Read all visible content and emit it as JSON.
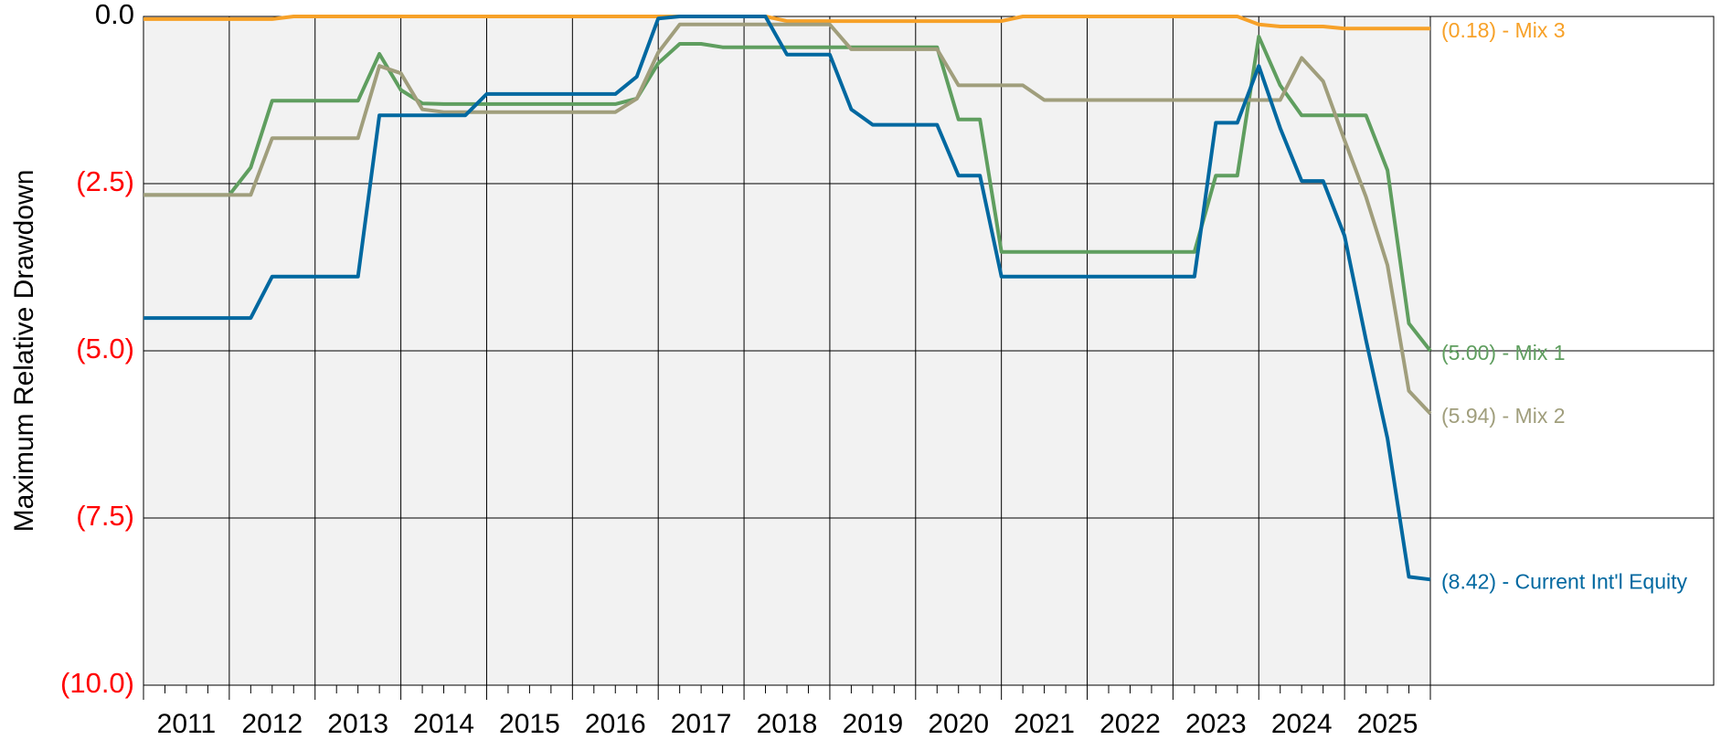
{
  "chart_data": {
    "type": "line",
    "y_axis_label": "Maximum Relative Drawdown",
    "x": [
      2011,
      2011.25,
      2011.5,
      2011.75,
      2012,
      2012.25,
      2012.5,
      2012.75,
      2013,
      2013.25,
      2013.5,
      2013.75,
      2014,
      2014.25,
      2014.5,
      2014.75,
      2015,
      2015.25,
      2015.5,
      2015.75,
      2016,
      2016.25,
      2016.5,
      2016.75,
      2017,
      2017.25,
      2017.5,
      2017.75,
      2018,
      2018.25,
      2018.5,
      2018.75,
      2019,
      2019.25,
      2019.5,
      2019.75,
      2020,
      2020.25,
      2020.5,
      2020.75,
      2021,
      2021.25,
      2021.5,
      2021.75,
      2022,
      2022.25,
      2022.5,
      2022.75,
      2023,
      2023.25,
      2023.5,
      2023.75,
      2024,
      2024.25,
      2024.5,
      2024.75,
      2025,
      2025.25,
      2025.5,
      2025.75,
      2026
    ],
    "xlim": [
      2011,
      2026
    ],
    "xgrid": [
      2011,
      2012,
      2013,
      2014,
      2015,
      2016,
      2017,
      2018,
      2019,
      2020,
      2021,
      2022,
      2023,
      2024,
      2025,
      2026
    ],
    "xticks": [
      {
        "value": 2011.5,
        "label": "2011"
      },
      {
        "value": 2012.5,
        "label": "2012"
      },
      {
        "value": 2013.5,
        "label": "2013"
      },
      {
        "value": 2014.5,
        "label": "2014"
      },
      {
        "value": 2015.5,
        "label": "2015"
      },
      {
        "value": 2016.5,
        "label": "2016"
      },
      {
        "value": 2017.5,
        "label": "2017"
      },
      {
        "value": 2018.5,
        "label": "2018"
      },
      {
        "value": 2019.5,
        "label": "2019"
      },
      {
        "value": 2020.5,
        "label": "2020"
      },
      {
        "value": 2021.5,
        "label": "2021"
      },
      {
        "value": 2022.5,
        "label": "2022"
      },
      {
        "value": 2023.5,
        "label": "2023"
      },
      {
        "value": 2024.5,
        "label": "2024"
      },
      {
        "value": 2025.5,
        "label": "2025"
      }
    ],
    "ylim": [
      -10,
      0
    ],
    "yticks": [
      {
        "value": 0,
        "label": "0.0"
      },
      {
        "value": -2.5,
        "label": "(2.5)"
      },
      {
        "value": -5,
        "label": "(5.0)"
      },
      {
        "value": -7.5,
        "label": "(7.5)"
      },
      {
        "value": -10,
        "label": "(10.0)"
      }
    ],
    "ytick_color_negative": "#ff0000",
    "grid": true,
    "label_separator": " - ",
    "series": [
      {
        "name": "Mix 3",
        "color": "#f7a128",
        "end_value_label": "(0.18)",
        "values": [
          -0.04,
          -0.04,
          -0.04,
          -0.04,
          -0.04,
          -0.04,
          -0.04,
          0,
          0,
          0,
          0,
          0,
          0,
          0,
          0,
          0,
          0,
          0,
          0,
          0,
          0,
          0,
          0,
          0,
          0,
          0,
          0,
          0,
          0,
          0,
          -0.07,
          -0.07,
          -0.07,
          -0.07,
          -0.07,
          -0.07,
          -0.07,
          -0.07,
          -0.07,
          -0.07,
          -0.07,
          0,
          0,
          0,
          0,
          0,
          0,
          0,
          0,
          0,
          0,
          0,
          -0.12,
          -0.15,
          -0.15,
          -0.15,
          -0.18,
          -0.18,
          -0.18,
          -0.18,
          -0.18
        ]
      },
      {
        "name": "Mix 1",
        "color": "#5f9e5f",
        "end_value_label": "(5.00)",
        "values": [
          -2.67,
          -2.67,
          -2.67,
          -2.67,
          -2.67,
          -2.26,
          -1.26,
          -1.26,
          -1.26,
          -1.26,
          -1.26,
          -0.56,
          -1.1,
          -1.3,
          -1.31,
          -1.31,
          -1.31,
          -1.31,
          -1.31,
          -1.31,
          -1.31,
          -1.31,
          -1.31,
          -1.23,
          -0.7,
          -0.41,
          -0.41,
          -0.46,
          -0.46,
          -0.46,
          -0.46,
          -0.46,
          -0.46,
          -0.46,
          -0.46,
          -0.46,
          -0.46,
          -0.46,
          -1.54,
          -1.54,
          -3.52,
          -3.52,
          -3.52,
          -3.52,
          -3.52,
          -3.52,
          -3.52,
          -3.52,
          -3.52,
          -3.52,
          -2.38,
          -2.38,
          -0.3,
          -1.03,
          -1.48,
          -1.48,
          -1.48,
          -1.48,
          -2.3,
          -4.59,
          -5.0
        ]
      },
      {
        "name": "Mix 2",
        "color": "#a09e7c",
        "end_value_label": "(5.94)",
        "values": [
          -2.67,
          -2.67,
          -2.67,
          -2.67,
          -2.67,
          -2.67,
          -1.82,
          -1.82,
          -1.82,
          -1.82,
          -1.82,
          -0.74,
          -0.85,
          -1.39,
          -1.43,
          -1.43,
          -1.43,
          -1.43,
          -1.43,
          -1.43,
          -1.43,
          -1.43,
          -1.43,
          -1.23,
          -0.54,
          -0.12,
          -0.12,
          -0.12,
          -0.12,
          -0.12,
          -0.12,
          -0.12,
          -0.12,
          -0.49,
          -0.49,
          -0.49,
          -0.49,
          -0.49,
          -1.03,
          -1.03,
          -1.03,
          -1.03,
          -1.25,
          -1.25,
          -1.25,
          -1.25,
          -1.25,
          -1.25,
          -1.25,
          -1.25,
          -1.25,
          -1.25,
          -1.25,
          -1.25,
          -0.62,
          -0.97,
          -1.85,
          -2.7,
          -3.72,
          -5.6,
          -5.94
        ]
      },
      {
        "name": "Current Int'l Equity",
        "color": "#0068a0",
        "end_value_label": "(8.42)",
        "values": [
          -4.51,
          -4.51,
          -4.51,
          -4.51,
          -4.51,
          -4.51,
          -3.89,
          -3.89,
          -3.89,
          -3.89,
          -3.89,
          -1.48,
          -1.48,
          -1.48,
          -1.48,
          -1.48,
          -1.16,
          -1.16,
          -1.16,
          -1.16,
          -1.16,
          -1.16,
          -1.16,
          -0.9,
          -0.03,
          0,
          0,
          0,
          0,
          0,
          -0.57,
          -0.57,
          -0.57,
          -1.39,
          -1.62,
          -1.62,
          -1.62,
          -1.62,
          -2.38,
          -2.38,
          -3.89,
          -3.89,
          -3.89,
          -3.89,
          -3.89,
          -3.89,
          -3.89,
          -3.89,
          -3.89,
          -3.89,
          -1.59,
          -1.59,
          -0.74,
          -1.67,
          -2.46,
          -2.46,
          -3.28,
          -4.84,
          -6.31,
          -8.38,
          -8.42
        ]
      }
    ]
  }
}
